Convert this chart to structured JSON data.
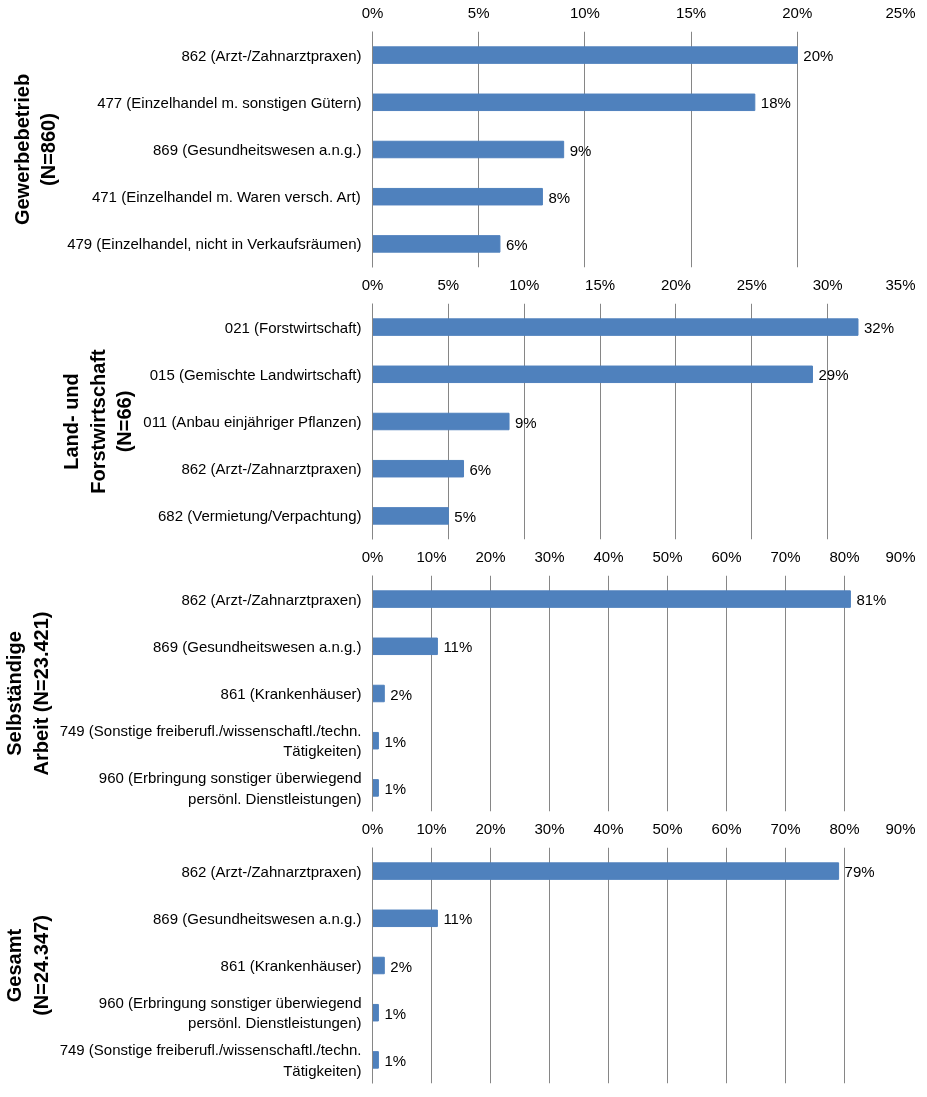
{
  "chart_data": [
    {
      "type": "bar",
      "orientation": "horizontal",
      "ylabel": "Gewerbebetrieb\n(N=860)",
      "categories": [
        "862 (Arzt-/Zahnarztpraxen)",
        "477 (Einzelhandel m. sonstigen Gütern)",
        "869 (Gesundheitswesen a.n.g.)",
        "471 (Einzelhandel m. Waren versch. Art)",
        "479 (Einzelhandel, nicht in Verkaufsräumen)"
      ],
      "values": [
        20,
        18,
        9,
        8,
        6
      ],
      "value_labels": [
        "20%",
        "18%",
        "9%",
        "8%",
        "6%"
      ],
      "color": "#4f81bd",
      "grid": "x",
      "xlim": [
        0,
        25
      ],
      "xticks": [
        {
          "value": 0,
          "label": "0%"
        },
        {
          "value": 5,
          "label": "5%"
        },
        {
          "value": 10,
          "label": "10%"
        },
        {
          "value": 15,
          "label": "15%"
        },
        {
          "value": 20,
          "label": "20%"
        },
        {
          "value": 25,
          "label": "25%"
        }
      ]
    },
    {
      "type": "bar",
      "orientation": "horizontal",
      "ylabel": "Land- und\nForstwirtschaft\n(N=66)",
      "categories": [
        "021 (Forstwirtschaft)",
        "015 (Gemischte Landwirtschaft)",
        "011 (Anbau einjähriger Pflanzen)",
        "862 (Arzt-/Zahnarztpraxen)",
        "682 (Vermietung/Verpachtung)"
      ],
      "values": [
        32,
        29,
        9,
        6,
        5
      ],
      "value_labels": [
        "32%",
        "29%",
        "9%",
        "6%",
        "5%"
      ],
      "color": "#4f81bd",
      "grid": "x",
      "xlim": [
        0,
        35
      ],
      "xticks": [
        {
          "value": 0,
          "label": "0%"
        },
        {
          "value": 5,
          "label": "5%"
        },
        {
          "value": 10,
          "label": "10%"
        },
        {
          "value": 15,
          "label": "15%"
        },
        {
          "value": 20,
          "label": "20%"
        },
        {
          "value": 25,
          "label": "25%"
        },
        {
          "value": 30,
          "label": "30%"
        },
        {
          "value": 35,
          "label": "35%"
        }
      ]
    },
    {
      "type": "bar",
      "orientation": "horizontal",
      "ylabel": "Selbständige\nArbeit (N=23.421)",
      "categories": [
        "862 (Arzt-/Zahnarztpraxen)",
        "869 (Gesundheitswesen a.n.g.)",
        "861 (Krankenhäuser)",
        "749 (Sonstige freiberufl./wissenschaftl./techn.\nTätigkeiten)",
        "960 (Erbringung sonstiger überwiegend\npersönl. Dienstleistungen)"
      ],
      "values": [
        81,
        11,
        2,
        1,
        1
      ],
      "value_labels": [
        "81%",
        "11%",
        "2%",
        "1%",
        "1%"
      ],
      "color": "#4f81bd",
      "grid": "x",
      "xlim": [
        0,
        90
      ],
      "xticks": [
        {
          "value": 0,
          "label": "0%"
        },
        {
          "value": 10,
          "label": "10%"
        },
        {
          "value": 20,
          "label": "20%"
        },
        {
          "value": 30,
          "label": "30%"
        },
        {
          "value": 40,
          "label": "40%"
        },
        {
          "value": 50,
          "label": "50%"
        },
        {
          "value": 60,
          "label": "60%"
        },
        {
          "value": 70,
          "label": "70%"
        },
        {
          "value": 80,
          "label": "80%"
        },
        {
          "value": 90,
          "label": "90%"
        }
      ]
    },
    {
      "type": "bar",
      "orientation": "horizontal",
      "ylabel": "Gesamt\n(N=24.347)",
      "categories": [
        "862 (Arzt-/Zahnarztpraxen)",
        "869 (Gesundheitswesen a.n.g.)",
        "861 (Krankenhäuser)",
        "960 (Erbringung sonstiger überwiegend\npersönl. Dienstleistungen)",
        "749 (Sonstige freiberufl./wissenschaftl./techn.\nTätigkeiten)"
      ],
      "values": [
        79,
        11,
        2,
        1,
        1
      ],
      "value_labels": [
        "79%",
        "11%",
        "2%",
        "1%",
        "1%"
      ],
      "color": "#4f81bd",
      "grid": "x",
      "xlim": [
        0,
        90
      ],
      "xticks": [
        {
          "value": 0,
          "label": "0%"
        },
        {
          "value": 10,
          "label": "10%"
        },
        {
          "value": 20,
          "label": "20%"
        },
        {
          "value": 30,
          "label": "30%"
        },
        {
          "value": 40,
          "label": "40%"
        },
        {
          "value": 50,
          "label": "50%"
        },
        {
          "value": 60,
          "label": "60%"
        },
        {
          "value": 70,
          "label": "70%"
        },
        {
          "value": 80,
          "label": "80%"
        },
        {
          "value": 90,
          "label": "90%"
        }
      ]
    }
  ]
}
